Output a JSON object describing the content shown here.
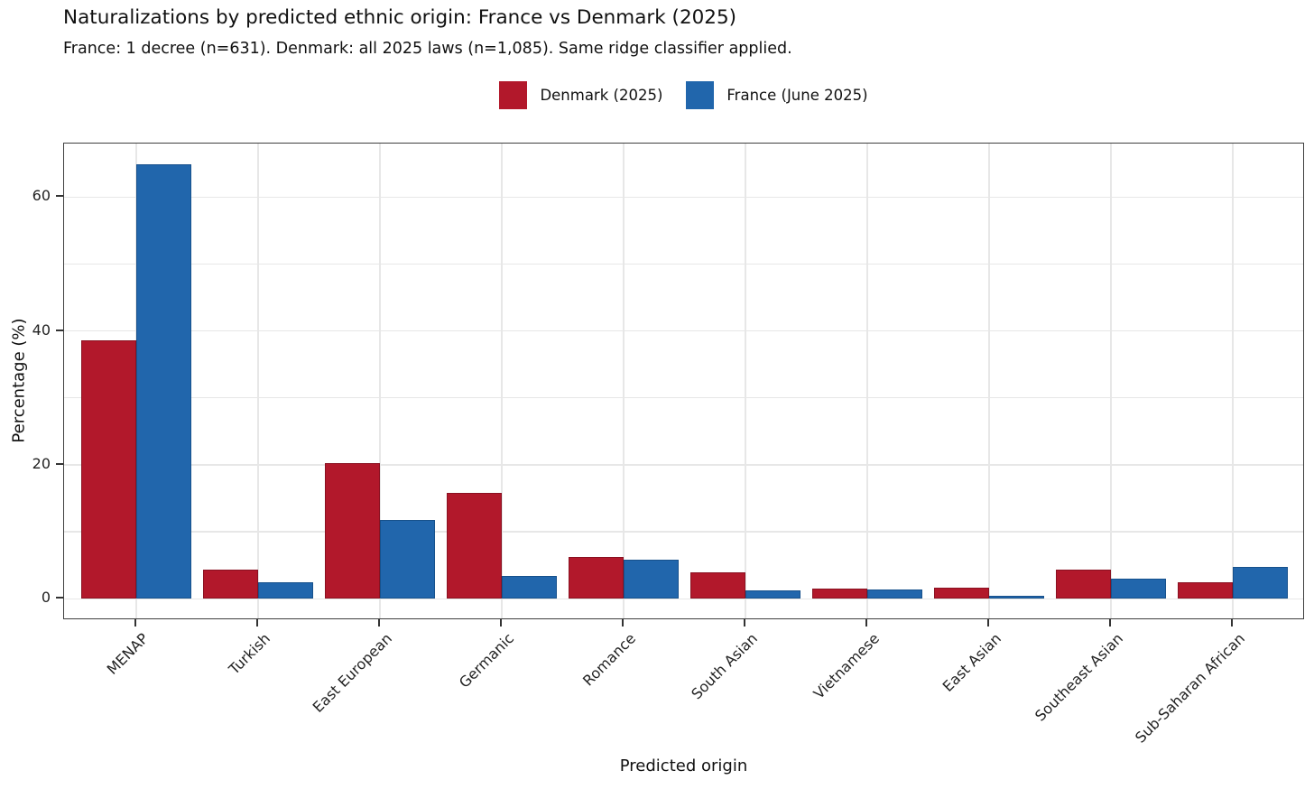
{
  "header": {
    "title": "Naturalizations by predicted ethnic origin: France vs Denmark (2025)",
    "subtitle": "France: 1 decree (n=631). Denmark: all 2025 laws (n=1,085). Same ridge classifier applied."
  },
  "axes": {
    "x_title": "Predicted origin",
    "y_title": "Percentage (%)"
  },
  "style": {
    "background": "#ffffff",
    "grid_color": "#e7e7e7",
    "panel_border_color": "#3f3f3f",
    "text_color": "#111111",
    "tick_color": "#333333",
    "denmark_red": "#b2182b",
    "france_blue": "#2166ac"
  },
  "chart_data": {
    "type": "bar",
    "title": "Naturalizations by predicted ethnic origin: France vs Denmark (2025)",
    "subtitle": "France: 1 decree (n=631). Denmark: all 2025 laws (n=1,085). Same ridge classifier applied.",
    "xlabel": "Predicted origin",
    "ylabel": "Percentage (%)",
    "categories": [
      "MENAP",
      "Turkish",
      "East European",
      "Germanic",
      "Romance",
      "South Asian",
      "Vietnamese",
      "East Asian",
      "Southeast Asian",
      "Sub-Saharan African"
    ],
    "series": [
      {
        "name": "Denmark (2025)",
        "color": "#b2182b",
        "edge_color": "#8a1121",
        "values": [
          38.6,
          4.3,
          20.3,
          15.8,
          6.2,
          4.0,
          1.5,
          1.7,
          4.4,
          2.5
        ]
      },
      {
        "name": "France (June 2025)",
        "color": "#2166ac",
        "edge_color": "#17518c",
        "values": [
          64.9,
          2.5,
          11.8,
          3.4,
          5.9,
          1.3,
          1.4,
          0.4,
          3.0,
          4.7
        ]
      }
    ],
    "ylim": [
      -3.2,
      68.0
    ],
    "yticks": [
      0,
      20,
      40,
      60
    ],
    "gridline_step": 10,
    "grid": true,
    "legend_position": "top-center",
    "bar_orientation": "vertical",
    "x_tick_rotation_deg": 45
  }
}
